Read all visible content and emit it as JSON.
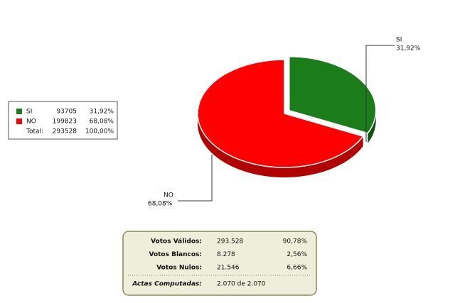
{
  "chart_data": {
    "type": "pie",
    "categories": [
      "SI",
      "NO"
    ],
    "values": [
      31.92,
      68.08
    ],
    "value_labels": [
      "31,92%",
      "68,08%"
    ],
    "colors": [
      "#1a7d1a",
      "#ff0000"
    ],
    "side_colors": [
      "#0f4f0f",
      "#b00000"
    ],
    "votes": [
      93705,
      199823
    ],
    "total_label": "Total:",
    "total_votes": 293528,
    "total_percent": "100,00%"
  },
  "summary": {
    "rows": [
      [
        "Votos Válidos:",
        "293.528",
        "90,78%"
      ],
      [
        "Votos Blancos:",
        "8.278",
        "2,56%"
      ],
      [
        "Votos Nulos:",
        "21.546",
        "6,66%"
      ]
    ],
    "actas_label": "Actas Computadas:",
    "actas_value": "2.070 de 2.070"
  }
}
